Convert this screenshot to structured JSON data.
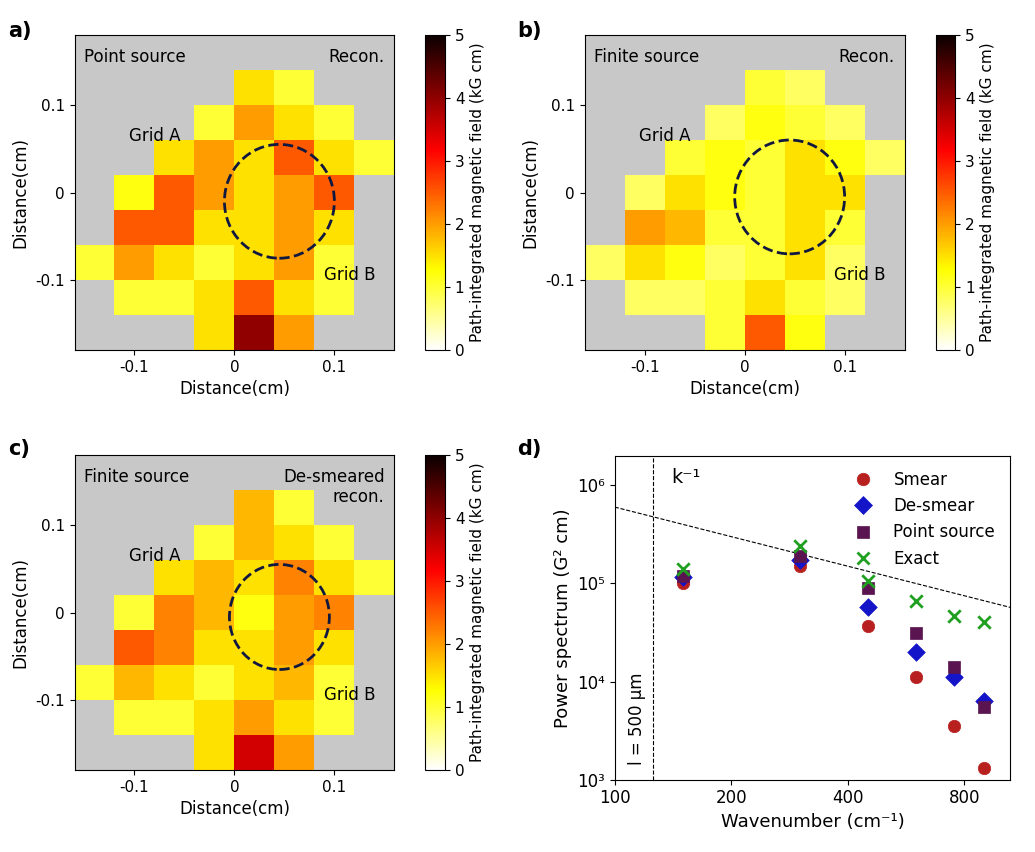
{
  "chart_data": [
    {
      "type": "heatmap",
      "panel": "a)",
      "source": "Point source",
      "method": "Recon.",
      "grid_labels": [
        "Grid A",
        "Grid B"
      ],
      "xlabel": "Distance(cm)",
      "ylabel": "Distance(cm)",
      "xlim": [
        -0.16,
        0.16
      ],
      "ylim": [
        -0.18,
        0.18
      ],
      "xticks": [
        -0.1,
        0,
        0.1
      ],
      "yticks": [
        -0.1,
        0,
        0.1
      ],
      "x_edges": [
        -0.16,
        -0.12,
        -0.08,
        -0.04,
        0,
        0.04,
        0.08,
        0.12,
        0.16
      ],
      "y_edges": [
        0.18,
        0.14,
        0.1,
        0.06,
        0.02,
        -0.02,
        -0.06,
        -0.1,
        -0.14,
        -0.18
      ],
      "cells": [
        [
          null,
          null,
          null,
          null,
          null,
          null,
          null,
          null
        ],
        [
          null,
          null,
          null,
          null,
          1.5,
          1.0,
          null,
          null
        ],
        [
          null,
          null,
          null,
          1.0,
          2.0,
          1.5,
          1.0,
          null
        ],
        [
          null,
          null,
          1.5,
          2.0,
          1.5,
          2.5,
          1.5,
          1.0
        ],
        [
          null,
          1.2,
          2.5,
          2.0,
          1.5,
          2.0,
          2.5,
          null
        ],
        [
          null,
          2.5,
          2.5,
          1.5,
          1.5,
          2.0,
          1.5,
          null
        ],
        [
          1.0,
          2.0,
          1.5,
          1.0,
          1.5,
          2.0,
          1.0,
          null
        ],
        [
          null,
          1.0,
          1.0,
          1.5,
          2.5,
          1.5,
          1.0,
          null
        ],
        [
          null,
          null,
          null,
          1.5,
          4.0,
          2.0,
          null,
          null
        ]
      ],
      "colorbar_label": "Path-integrated magnetic field (kG cm)",
      "colorbar_range": [
        0,
        5
      ],
      "colorbar_ticks": [
        0,
        1,
        2,
        3,
        4,
        5
      ],
      "region": {
        "center": [
          0.045,
          -0.01
        ],
        "width": 0.11,
        "height": 0.13
      }
    },
    {
      "type": "heatmap",
      "panel": "b)",
      "source": "Finite source",
      "method": "Recon.",
      "grid_labels": [
        "Grid A",
        "Grid B"
      ],
      "xlabel": "Distance(cm)",
      "ylabel": "Distance(cm)",
      "xlim": [
        -0.16,
        0.16
      ],
      "ylim": [
        -0.18,
        0.18
      ],
      "xticks": [
        -0.1,
        0,
        0.1
      ],
      "yticks": [
        -0.1,
        0,
        0.1
      ],
      "x_edges": [
        -0.16,
        -0.12,
        -0.08,
        -0.04,
        0,
        0.04,
        0.08,
        0.12,
        0.16
      ],
      "y_edges": [
        0.18,
        0.14,
        0.1,
        0.06,
        0.02,
        -0.02,
        -0.06,
        -0.1,
        -0.14,
        -0.18
      ],
      "cells": [
        [
          null,
          null,
          null,
          null,
          null,
          null,
          null,
          null
        ],
        [
          null,
          null,
          null,
          null,
          1.0,
          0.8,
          null,
          null
        ],
        [
          null,
          null,
          null,
          0.8,
          1.2,
          1.0,
          0.8,
          null
        ],
        [
          null,
          null,
          1.0,
          1.2,
          1.0,
          1.5,
          1.2,
          0.8
        ],
        [
          null,
          0.8,
          1.5,
          1.2,
          1.0,
          1.5,
          1.5,
          null
        ],
        [
          null,
          2.0,
          1.8,
          1.0,
          1.0,
          1.5,
          1.0,
          null
        ],
        [
          0.8,
          1.5,
          1.2,
          0.8,
          1.0,
          1.5,
          0.8,
          null
        ],
        [
          null,
          0.8,
          0.8,
          1.0,
          1.5,
          1.0,
          0.8,
          null
        ],
        [
          null,
          null,
          null,
          1.0,
          2.5,
          1.2,
          null,
          null
        ]
      ],
      "colorbar_label": "Path-integrated magnetic field (kG cm)",
      "colorbar_range": [
        0,
        5
      ],
      "colorbar_ticks": [
        0,
        1,
        2,
        3,
        4,
        5
      ],
      "region": {
        "center": [
          0.045,
          -0.005
        ],
        "width": 0.11,
        "height": 0.13
      }
    },
    {
      "type": "heatmap",
      "panel": "c)",
      "source": "Finite source",
      "method": "De-smeared\nrecon.",
      "grid_labels": [
        "Grid A",
        "Grid B"
      ],
      "xlabel": "Distance(cm)",
      "ylabel": "Distance(cm)",
      "xlim": [
        -0.16,
        0.16
      ],
      "ylim": [
        -0.18,
        0.18
      ],
      "xticks": [
        -0.1,
        0,
        0.1
      ],
      "yticks": [
        -0.1,
        0,
        0.1
      ],
      "x_edges": [
        -0.16,
        -0.12,
        -0.08,
        -0.04,
        0,
        0.04,
        0.08,
        0.12,
        0.16
      ],
      "y_edges": [
        0.18,
        0.14,
        0.1,
        0.06,
        0.02,
        -0.02,
        -0.06,
        -0.1,
        -0.14,
        -0.18
      ],
      "cells": [
        [
          null,
          null,
          null,
          null,
          null,
          null,
          null,
          null
        ],
        [
          null,
          null,
          null,
          null,
          1.8,
          1.0,
          null,
          null
        ],
        [
          null,
          null,
          null,
          1.0,
          1.8,
          1.5,
          1.0,
          null
        ],
        [
          null,
          null,
          1.5,
          1.8,
          1.5,
          2.2,
          1.5,
          1.0
        ],
        [
          null,
          1.0,
          2.2,
          1.8,
          1.2,
          2.0,
          2.2,
          null
        ],
        [
          null,
          2.5,
          2.2,
          1.5,
          1.5,
          2.0,
          1.5,
          null
        ],
        [
          1.0,
          1.8,
          1.5,
          1.0,
          1.5,
          1.8,
          1.0,
          null
        ],
        [
          null,
          1.0,
          1.0,
          1.5,
          2.0,
          1.5,
          1.0,
          null
        ],
        [
          null,
          null,
          null,
          1.5,
          3.5,
          2.0,
          null,
          null
        ]
      ],
      "colorbar_label": "Path-integrated magnetic field (kG cm)",
      "colorbar_range": [
        0,
        5
      ],
      "colorbar_ticks": [
        0,
        1,
        2,
        3,
        4,
        5
      ],
      "region": {
        "center": [
          0.045,
          -0.005
        ],
        "width": 0.1,
        "height": 0.12
      }
    },
    {
      "type": "scatter",
      "panel": "d)",
      "log": true,
      "legend": "upper right",
      "xlabel": "Wavenumber (cm⁻¹)",
      "ylabel": "Power spectrum (G² cm)",
      "xlim": [
        100,
        1050
      ],
      "ylim": [
        1000,
        2000000
      ],
      "xticks": [
        100,
        200,
        400,
        800
      ],
      "yticks": [
        {
          "value": 1000,
          "label": "10³"
        },
        {
          "value": 10000,
          "label": "10⁴"
        },
        {
          "value": 100000,
          "label": "10⁵"
        },
        {
          "value": 1000000,
          "label": "10⁶"
        }
      ],
      "x": [
        150,
        300,
        450,
        600,
        750,
        900
      ],
      "series": [
        {
          "name": "Smear",
          "color": "#b8201f",
          "marker": "circle",
          "values": [
            100000,
            150000,
            37000,
            11000,
            3500,
            1300
          ]
        },
        {
          "name": "De-smear",
          "color": "#1414c8",
          "marker": "diamond",
          "values": [
            115000,
            175000,
            57000,
            20000,
            11000,
            6300
          ]
        },
        {
          "name": "Point source",
          "color": "#5a1450",
          "marker": "square",
          "values": [
            120000,
            190000,
            90000,
            31000,
            14000,
            5500
          ]
        },
        {
          "name": "Exact",
          "color": "#20a020",
          "marker": "x",
          "values": [
            140000,
            240000,
            105000,
            66000,
            46000,
            40000
          ]
        }
      ],
      "reference_line": {
        "label": "k⁻¹",
        "x": [
          100,
          1050
        ],
        "values": [
          600000,
          57000
        ]
      },
      "vertical_line": {
        "value": 125.7,
        "label": "l = 500 μm"
      }
    }
  ]
}
